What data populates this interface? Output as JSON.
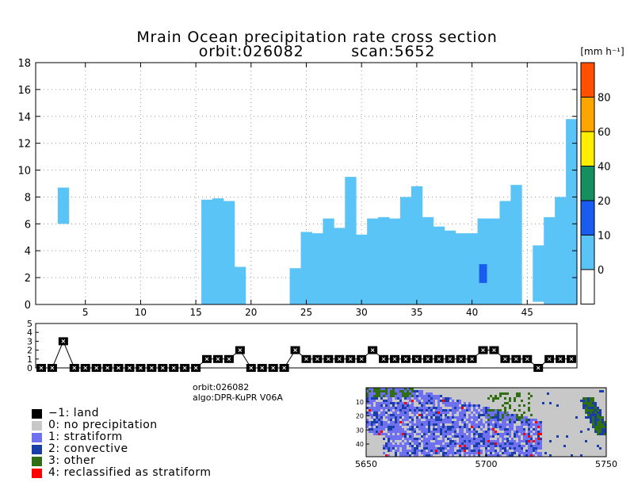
{
  "title_line1": "Mrain Ocean precipitation rate cross section",
  "title_line2_left": "orbit:026082",
  "title_line2_right": "scan:5652",
  "unit_label": "[mm h⁻¹]",
  "info": {
    "orbit": "orbit:026082",
    "algo": "algo:DPR-KuPR V06A"
  },
  "legend": [
    {
      "label": "−1: land",
      "color": "#000000"
    },
    {
      "label": "0: no precipitation",
      "color": "#c8c8c8"
    },
    {
      "label": "1: stratiform",
      "color": "#6f70f0"
    },
    {
      "label": "2: convective",
      "color": "#1a3ea8"
    },
    {
      "label": "3: other",
      "color": "#2f6e12"
    },
    {
      "label": "4: reclassified as stratiform",
      "color": "#ff0000"
    }
  ],
  "colorbar": {
    "ticks": [
      "0",
      "10",
      "20",
      "40",
      "60",
      "80"
    ],
    "colors": [
      "#ffffff",
      "#5bc4f7",
      "#1a5cf0",
      "#149060",
      "#ffee00",
      "#ffa500",
      "#ff5000"
    ]
  },
  "chart_data": [
    {
      "type": "bar",
      "title": "Mrain Ocean precipitation rate cross section",
      "x_ticks": [
        "5",
        "10",
        "15",
        "20",
        "25",
        "30",
        "35",
        "40",
        "45"
      ],
      "y_ticks": [
        "0",
        "2",
        "4",
        "6",
        "8",
        "10",
        "12",
        "14",
        "16",
        "18"
      ],
      "xlim": [
        1,
        49
      ],
      "ylim": [
        0,
        18
      ],
      "grid": true,
      "columns": [
        {
          "x": 3,
          "bottom": 6.0,
          "top": 8.7
        },
        {
          "x": 16,
          "bottom": 0,
          "top": 7.8
        },
        {
          "x": 17,
          "bottom": 0,
          "top": 7.9
        },
        {
          "x": 18,
          "bottom": 0,
          "top": 7.7
        },
        {
          "x": 19,
          "bottom": 0,
          "top": 2.8
        },
        {
          "x": 24,
          "bottom": 0,
          "top": 2.7
        },
        {
          "x": 25,
          "bottom": 0,
          "top": 5.4
        },
        {
          "x": 26,
          "bottom": 0,
          "top": 5.3
        },
        {
          "x": 27,
          "bottom": 0,
          "top": 6.4
        },
        {
          "x": 28,
          "bottom": 0,
          "top": 5.7
        },
        {
          "x": 29,
          "bottom": 0,
          "top": 9.5
        },
        {
          "x": 30,
          "bottom": 0,
          "top": 5.2
        },
        {
          "x": 31,
          "bottom": 0,
          "top": 6.4
        },
        {
          "x": 32,
          "bottom": 0,
          "top": 6.5
        },
        {
          "x": 33,
          "bottom": 0,
          "top": 6.4
        },
        {
          "x": 34,
          "bottom": 0,
          "top": 8.0
        },
        {
          "x": 35,
          "bottom": 0,
          "top": 8.8
        },
        {
          "x": 36,
          "bottom": 0,
          "top": 6.5
        },
        {
          "x": 37,
          "bottom": 0,
          "top": 5.8
        },
        {
          "x": 38,
          "bottom": 0,
          "top": 5.5
        },
        {
          "x": 39,
          "bottom": 0,
          "top": 5.3
        },
        {
          "x": 40,
          "bottom": 0,
          "top": 5.3
        },
        {
          "x": 41,
          "bottom": 0,
          "top": 6.4
        },
        {
          "x": 42,
          "bottom": 0,
          "top": 6.4
        },
        {
          "x": 43,
          "bottom": 0,
          "top": 7.7
        },
        {
          "x": 44,
          "bottom": 0,
          "top": 8.9
        },
        {
          "x": 46,
          "bottom": 0.2,
          "top": 4.4
        },
        {
          "x": 47,
          "bottom": 0,
          "top": 6.5
        },
        {
          "x": 48,
          "bottom": 0,
          "top": 8.0
        },
        {
          "x": 49,
          "bottom": 0,
          "top": 13.8
        }
      ],
      "convective_cell": {
        "x": 41,
        "bottom": 1.6,
        "top": 3.0
      }
    },
    {
      "type": "line",
      "y_ticks": [
        "0",
        "1",
        "2",
        "3",
        "4",
        "5"
      ],
      "ylim": [
        0,
        5
      ],
      "x": [
        1,
        2,
        3,
        4,
        5,
        6,
        7,
        8,
        9,
        10,
        11,
        12,
        13,
        14,
        15,
        16,
        17,
        18,
        19,
        20,
        21,
        22,
        23,
        24,
        25,
        26,
        27,
        28,
        29,
        30,
        31,
        32,
        33,
        34,
        35,
        36,
        37,
        38,
        39,
        40,
        41,
        42,
        43,
        44,
        45,
        46,
        47,
        48,
        49
      ],
      "values": [
        0,
        0,
        3,
        0,
        0,
        0,
        0,
        0,
        0,
        0,
        0,
        0,
        0,
        0,
        0,
        1,
        1,
        1,
        2,
        0,
        0,
        0,
        0,
        2,
        1,
        1,
        1,
        1,
        1,
        1,
        2,
        1,
        1,
        1,
        1,
        1,
        1,
        1,
        1,
        1,
        2,
        2,
        1,
        1,
        1,
        0,
        1,
        1,
        1
      ]
    },
    {
      "type": "heatmap",
      "x_ticks": [
        "5650",
        "5700",
        "5750"
      ],
      "y_ticks": [
        "10",
        "20",
        "30",
        "40"
      ]
    }
  ]
}
